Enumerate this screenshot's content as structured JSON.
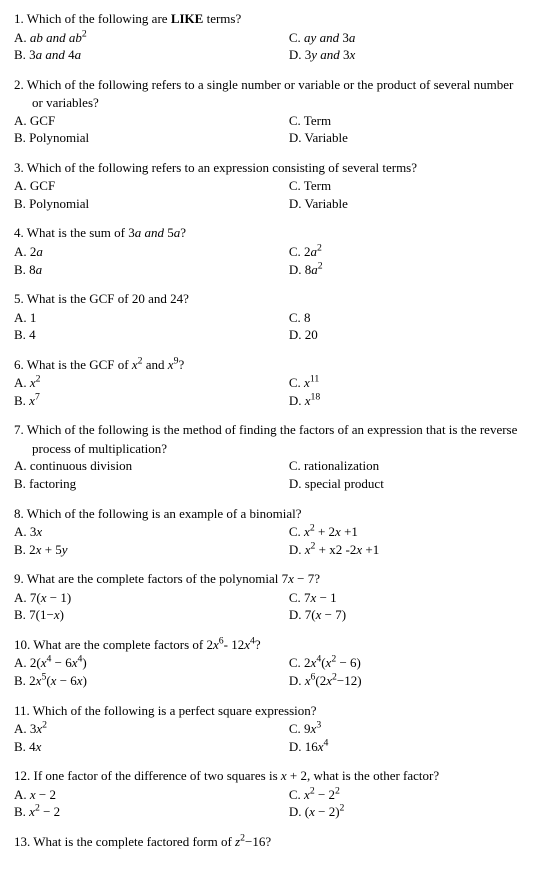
{
  "questions": [
    {
      "num": "1.",
      "text": "Which of the following are <b>LIKE</b> terms?",
      "cont": null,
      "a": "<i>ab and ab</i><sup>2</sup>",
      "b": "3<i>a and</i> 4<i>a</i>",
      "c": "<i>ay and</i> 3<i>a</i>",
      "d": "3<i>y and</i> 3<i>x</i>"
    },
    {
      "num": "2.",
      "text": "Which of the following refers to a single number or variable or the product of several number",
      "cont": "or variables?",
      "a": "GCF",
      "b": "Polynomial",
      "c": "Term",
      "d": "Variable"
    },
    {
      "num": "3.",
      "text": "Which of the following refers to an expression consisting of several terms?",
      "cont": null,
      "a": "GCF",
      "b": "Polynomial",
      "c": "Term",
      "d": "Variable"
    },
    {
      "num": "4.",
      "text": "What is the sum of 3<i>a and</i> 5<i>a</i>?",
      "cont": null,
      "a": "2<i>a</i>",
      "b": "8<i>a</i>",
      "c": "2<i>a</i><sup>2</sup>",
      "d": "8<i>a</i><sup>2</sup>"
    },
    {
      "num": "5.",
      "text": "What is the GCF of 20 and 24?",
      "cont": null,
      "a": "1",
      "b": "4",
      "c": "8",
      "d": "20"
    },
    {
      "num": "6.",
      "text": "What is the GCF of <i>x</i><sup>2</sup> and <i>x</i><sup>9</sup>?",
      "cont": null,
      "a": "<i>x</i><sup>2</sup>",
      "b": "<i>x</i><sup>7</sup>",
      "c": "<i>x</i><sup>11</sup>",
      "d": "<i>x</i><sup>18</sup>"
    },
    {
      "num": "7.",
      "text": "Which of the following is the method of finding the factors of an expression that is the reverse",
      "cont": "process of multiplication?",
      "a": "continuous division",
      "b": "factoring",
      "c": "rationalization",
      "d": "special product"
    },
    {
      "num": "8.",
      "text": "Which of the following is an example of a binomial?",
      "cont": null,
      "a": "3<i>x</i>",
      "b": "2<i>x</i> + 5<i>y</i>",
      "c": "<i>x</i><sup>2</sup> + 2<i>x</i> +1",
      "d": "<i>x</i><sup>2</sup> + x2 -2<i>x</i> +1"
    },
    {
      "num": "9.",
      "text": "What are the complete factors of the polynomial 7<i>x</i> − 7?",
      "cont": null,
      "a": "7(<i>x</i> − 1)",
      "b": "7(1−<i>x</i>)",
      "c": "7<i>x</i> − 1",
      "d": "7(<i>x</i> − 7)"
    },
    {
      "num": "10.",
      "text": "What are the complete factors of 2<i>x</i><sup>6</sup>- 12<i>x</i><sup>4</sup>?",
      "cont": null,
      "a": "2(<i>x</i><sup>4</sup> − 6<i>x</i><sup>4</sup>)",
      "b": "2<i>x</i><sup>5</sup>(<i>x</i> − 6<i>x</i>)",
      "c": "2<i>x</i><sup>4</sup>(<i>x</i><sup>2</sup> − 6)",
      "d": "<i>x</i><sup>6</sup>(2<i>x</i><sup>2</sup>−12)"
    },
    {
      "num": "11.",
      "text": "Which of the following is a perfect square expression?",
      "cont": null,
      "a": "3<i>x</i><sup>2</sup>",
      "b": "4<i>x</i>",
      "c": "9<i>x</i><sup>3</sup>",
      "d": "16<i>x</i><sup>4</sup>"
    },
    {
      "num": "12.",
      "text": "If one factor of the difference of two squares is <i>x</i> + 2, what is the other factor?",
      "cont": null,
      "a": "<i>x</i> − 2",
      "b": "<i>x</i><sup>2</sup> − 2",
      "c": "<i>x</i><sup>2</sup> − 2<sup>2</sup>",
      "d": "(<i>x</i> − 2)<sup>2</sup>"
    },
    {
      "num": "13.",
      "text": "What is the complete factored form of <i>z</i><sup>2</sup>−16?",
      "cont": null,
      "a": null,
      "b": null,
      "c": null,
      "d": null
    }
  ]
}
